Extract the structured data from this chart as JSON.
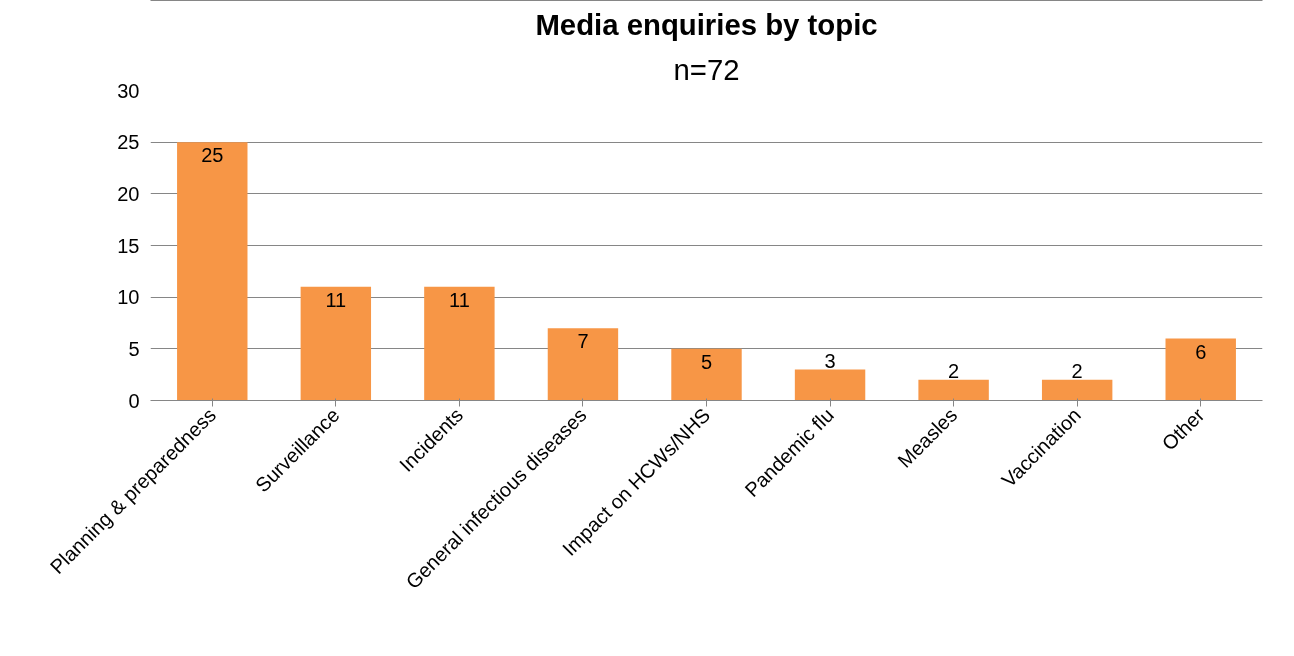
{
  "chart_data": {
    "type": "bar",
    "title": "Media enquiries by topic",
    "subtitle": "n=72",
    "categories": [
      "Planning & preparedness",
      "Surveillance",
      "Incidents",
      "General infectious diseases",
      "Impact on HCWs/NHS",
      "Pandemic flu",
      "Measles",
      "Vaccination",
      "Other"
    ],
    "values": [
      25,
      11,
      11,
      7,
      5,
      3,
      2,
      2,
      6
    ],
    "color": "#f79646",
    "ylim": [
      0,
      30
    ],
    "yticks": [
      0,
      5,
      10,
      15,
      20,
      25,
      30
    ],
    "grid": "y",
    "data_labels": true
  }
}
